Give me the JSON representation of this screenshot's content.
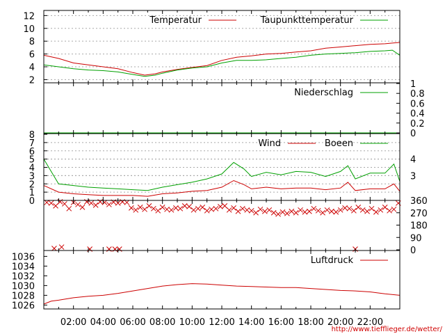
{
  "credit": "http://www.tiefflieger.de/wetter/",
  "x_tick_labels": [
    "02:00",
    "04:00",
    "06:00",
    "08:00",
    "10:00",
    "12:00",
    "14:00",
    "16:00",
    "18:00",
    "20:00",
    "22:00"
  ],
  "colors": {
    "red": "#cc0000",
    "green": "#00a000",
    "grid": "#a8a8a8",
    "axis": "#000000"
  },
  "chart_data": [
    {
      "type": "line",
      "panel": "temperature",
      "x_unit": "hours",
      "xlim": [
        0,
        24
      ],
      "ylim": [
        1.5,
        12.8
      ],
      "y_ticks": [
        2,
        4,
        6,
        8,
        10,
        12
      ],
      "y_tick_labels": [
        "2",
        "4",
        "6",
        "8",
        "10",
        "12"
      ],
      "grid": true,
      "legend_position": "top-right",
      "series": [
        {
          "name": "Temperatur",
          "color": "#cc0000",
          "x": [
            0,
            1,
            2,
            3,
            4,
            5,
            6,
            6.8,
            7.5,
            8,
            9,
            10,
            11,
            12,
            13,
            14,
            15,
            16,
            17,
            18,
            19,
            20,
            21,
            22,
            23,
            23.5,
            24
          ],
          "values": [
            5.8,
            5.3,
            4.6,
            4.3,
            4.0,
            3.7,
            3.1,
            2.7,
            2.9,
            3.2,
            3.6,
            3.9,
            4.2,
            5.0,
            5.5,
            5.7,
            6.0,
            6.1,
            6.3,
            6.5,
            6.9,
            7.1,
            7.3,
            7.5,
            7.6,
            7.7,
            7.8
          ]
        },
        {
          "name": "Taupunkttemperatur",
          "color": "#00a000",
          "x": [
            0,
            1,
            2,
            3,
            4,
            5,
            6,
            6.8,
            7.5,
            8,
            9,
            10,
            11,
            12,
            13,
            14,
            15,
            16,
            17,
            18,
            19,
            20,
            21,
            22,
            23,
            23.5,
            24
          ],
          "values": [
            4.3,
            4.0,
            3.7,
            3.5,
            3.4,
            3.2,
            2.8,
            2.5,
            2.7,
            3.0,
            3.5,
            3.8,
            4.0,
            4.6,
            5.0,
            5.0,
            5.1,
            5.3,
            5.5,
            5.8,
            6.0,
            6.1,
            6.2,
            6.4,
            6.5,
            6.6,
            5.8
          ]
        }
      ]
    },
    {
      "type": "line",
      "panel": "precipitation",
      "xlim": [
        0,
        24
      ],
      "ylim": [
        0,
        1
      ],
      "y_ticks": [
        0,
        0.2,
        0.4,
        0.6,
        0.8,
        1
      ],
      "y_tick_labels": [
        "0",
        "0.2",
        "0.4",
        "0.6",
        "0.8",
        "1"
      ],
      "series": [
        {
          "name": "Niederschlag",
          "color": "#00a000",
          "x": [
            0,
            24
          ],
          "values": [
            0,
            0
          ]
        }
      ]
    },
    {
      "type": "line",
      "panel": "wind",
      "xlim": [
        0,
        24
      ],
      "ylim": [
        0,
        8
      ],
      "y_ticks": [
        0,
        1,
        2,
        3,
        4,
        5,
        6,
        7,
        8
      ],
      "y_tick_labels": [
        "0",
        "1",
        "2",
        "3",
        "4",
        "5",
        "6",
        "7",
        "8"
      ],
      "y2_ticks": [
        {
          "value": 3.0,
          "label": "3"
        },
        {
          "value": 5.0,
          "label": "4"
        }
      ],
      "grid": true,
      "series": [
        {
          "name": "Wind",
          "color": "#cc0000",
          "x": [
            0,
            1,
            2,
            3,
            4,
            5,
            6,
            7,
            8,
            9,
            10,
            11,
            12,
            12.8,
            13.5,
            14,
            15,
            16,
            17,
            18,
            19,
            20,
            20.5,
            21,
            22,
            23,
            23.6,
            24
          ],
          "values": [
            1.8,
            1.0,
            0.8,
            0.7,
            0.6,
            0.6,
            0.6,
            0.5,
            0.8,
            0.9,
            1.1,
            1.2,
            1.6,
            2.4,
            1.9,
            1.4,
            1.6,
            1.4,
            1.5,
            1.5,
            1.3,
            1.5,
            2.2,
            1.2,
            1.4,
            1.4,
            2.0,
            1.1
          ]
        },
        {
          "name": "Boeen",
          "color": "#00a000",
          "x": [
            0,
            1,
            2,
            3,
            4,
            5,
            6,
            7,
            8,
            9,
            10,
            11,
            12,
            12.8,
            13.5,
            14,
            15,
            16,
            17,
            18,
            19,
            20,
            20.5,
            21,
            22,
            23,
            23.6,
            24
          ],
          "values": [
            5.0,
            2.0,
            1.8,
            1.6,
            1.5,
            1.4,
            1.3,
            1.2,
            1.6,
            1.9,
            2.2,
            2.6,
            3.2,
            4.6,
            3.8,
            2.9,
            3.4,
            3.1,
            3.5,
            3.4,
            2.9,
            3.5,
            4.2,
            2.6,
            3.3,
            3.3,
            4.4,
            2.3
          ]
        }
      ]
    },
    {
      "type": "scatter",
      "panel": "wind-direction",
      "marker": "x",
      "xlim": [
        0,
        24
      ],
      "ylim": [
        0,
        360
      ],
      "y_ticks": [
        0,
        90,
        180,
        270,
        360
      ],
      "y_tick_labels": [
        "0",
        "90",
        "180",
        "270",
        "360"
      ],
      "series": [
        {
          "name": "",
          "color": "#cc0000",
          "x": [
            0.2,
            0.5,
            0.8,
            1.1,
            1.4,
            1.7,
            2.0,
            2.3,
            2.6,
            2.9,
            3.2,
            3.5,
            3.8,
            4.1,
            4.4,
            4.7,
            5.0,
            5.3,
            5.6,
            5.9,
            6.2,
            6.5,
            6.8,
            7.1,
            7.4,
            7.7,
            8.0,
            8.3,
            8.6,
            8.9,
            9.2,
            9.5,
            9.8,
            10.1,
            10.4,
            10.7,
            11.0,
            11.3,
            11.6,
            11.9,
            12.2,
            12.5,
            12.8,
            13.1,
            13.4,
            13.7,
            14.0,
            14.3,
            14.6,
            14.9,
            15.2,
            15.5,
            15.8,
            16.1,
            16.4,
            16.7,
            17.0,
            17.3,
            17.6,
            17.9,
            18.2,
            18.5,
            18.8,
            19.1,
            19.4,
            19.7,
            20.0,
            20.3,
            20.6,
            20.9,
            21.2,
            21.5,
            21.8,
            22.1,
            22.4,
            22.7,
            23.0,
            23.3,
            23.6,
            23.9,
            0.7,
            1.2,
            3.1,
            4.4,
            4.8,
            5.1,
            21.0
          ],
          "values": [
            345,
            340,
            320,
            350,
            335,
            300,
            345,
            330,
            310,
            350,
            340,
            325,
            350,
            345,
            330,
            348,
            340,
            350,
            345,
            305,
            290,
            310,
            295,
            320,
            300,
            285,
            310,
            295,
            290,
            305,
            300,
            320,
            315,
            290,
            300,
            310,
            285,
            295,
            300,
            315,
            320,
            290,
            305,
            280,
            300,
            290,
            285,
            270,
            295,
            280,
            290,
            270,
            260,
            275,
            265,
            280,
            270,
            290,
            275,
            280,
            300,
            285,
            270,
            290,
            280,
            275,
            290,
            305,
            300,
            285,
            310,
            290,
            280,
            300,
            275,
            290,
            310,
            285,
            295,
            340,
            10,
            20,
            5,
            5,
            5,
            5,
            5
          ]
        }
      ]
    },
    {
      "type": "line",
      "panel": "pressure",
      "xlim": [
        0,
        24
      ],
      "ylim": [
        1025.2,
        1037.2
      ],
      "y_ticks": [
        1026,
        1028,
        1030,
        1032,
        1034,
        1036
      ],
      "y_tick_labels": [
        "1026",
        "1028",
        "1030",
        "1032",
        "1034",
        "1036"
      ],
      "legend_position": "top-right",
      "series": [
        {
          "name": "Luftdruck",
          "color": "#cc0000",
          "x": [
            0,
            0.5,
            1,
            2,
            3,
            4,
            5,
            6,
            7,
            8,
            9,
            10,
            11,
            12,
            13,
            14,
            15,
            16,
            17,
            18,
            19,
            20,
            21,
            22,
            23,
            24
          ],
          "values": [
            1026.2,
            1026.8,
            1027.0,
            1027.5,
            1027.8,
            1028.0,
            1028.4,
            1028.9,
            1029.4,
            1029.9,
            1030.2,
            1030.4,
            1030.3,
            1030.1,
            1029.9,
            1029.8,
            1029.7,
            1029.6,
            1029.6,
            1029.4,
            1029.2,
            1029.0,
            1028.9,
            1028.7,
            1028.3,
            1028.0
          ]
        }
      ]
    }
  ]
}
